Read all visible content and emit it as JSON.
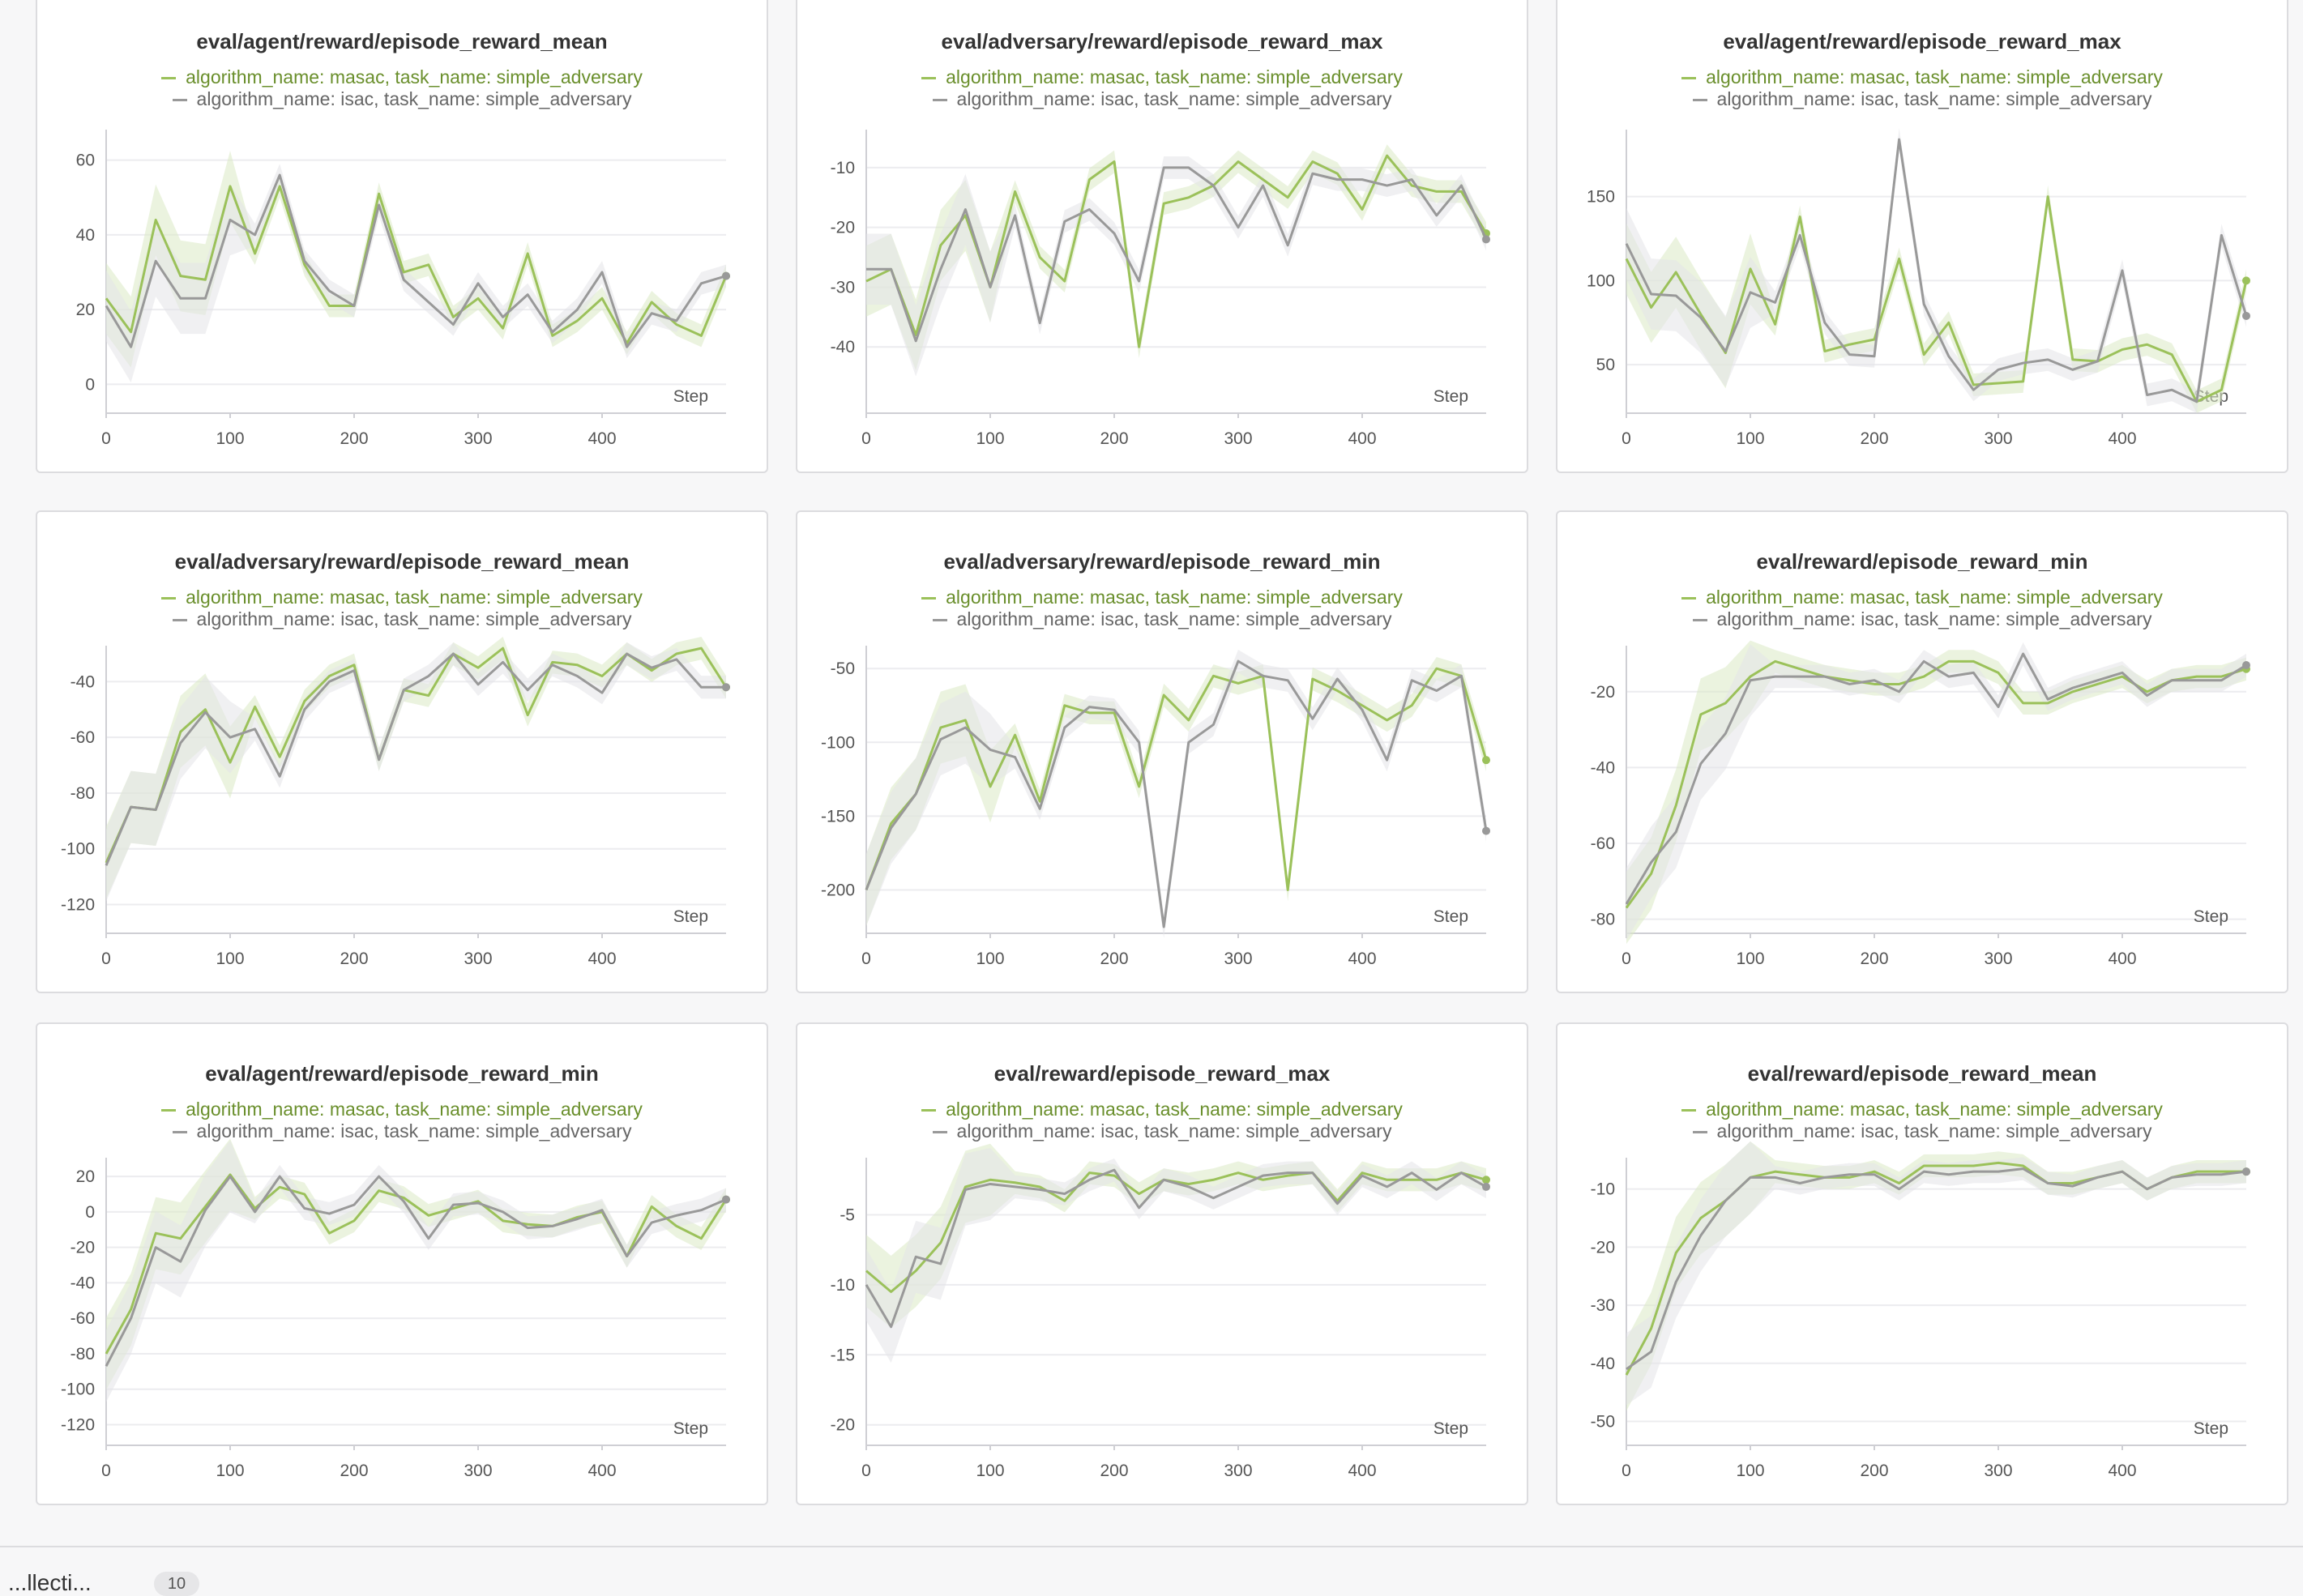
{
  "colors": {
    "masac": "#9bc15a",
    "isac": "#999999",
    "masac_band": "#dbe9c4",
    "isac_band": "#e4e4e7"
  },
  "legend": {
    "masac": "algorithm_name: masac, task_name: simple_adversary",
    "isac": "algorithm_name: isac, task_name: simple_adversary"
  },
  "x_axis_label": "Step",
  "footer": {
    "label": "...llecti...",
    "badge": "10"
  },
  "chart_data": [
    {
      "type": "line",
      "title": "eval/agent/reward/episode_reward_mean",
      "xlabel": "Step",
      "xlim": [
        0,
        500
      ],
      "ylim": [
        -6,
        66
      ],
      "xticks": [
        0,
        100,
        200,
        300,
        400
      ],
      "yticks": [
        0,
        20,
        40,
        60
      ],
      "x": [
        0,
        20,
        40,
        60,
        80,
        100,
        120,
        140,
        160,
        180,
        200,
        220,
        240,
        260,
        280,
        300,
        320,
        340,
        360,
        380,
        400,
        420,
        440,
        460,
        480,
        500
      ],
      "series": [
        {
          "name": "algorithm_name: masac, task_name: simple_adversary",
          "values": [
            23,
            14,
            44,
            29,
            28,
            53,
            35,
            53,
            32,
            21,
            21,
            51,
            30,
            32,
            18,
            23,
            15,
            35,
            13,
            17,
            23,
            11,
            22,
            16,
            13,
            29
          ]
        },
        {
          "name": "algorithm_name: isac, task_name: simple_adversary",
          "values": [
            21,
            10,
            33,
            23,
            23,
            44,
            40,
            56,
            33,
            25,
            21,
            48,
            28,
            22,
            16,
            27,
            18,
            24,
            14,
            20,
            30,
            10,
            19,
            17,
            27,
            29
          ]
        }
      ]
    },
    {
      "type": "line",
      "title": "eval/adversary/reward/episode_reward_max",
      "xlabel": "Step",
      "xlim": [
        0,
        500
      ],
      "ylim": [
        -50,
        -5
      ],
      "xticks": [
        0,
        100,
        200,
        300,
        400
      ],
      "yticks": [
        -10,
        -20,
        -30,
        -40
      ],
      "x": [
        0,
        20,
        40,
        60,
        80,
        100,
        120,
        140,
        160,
        180,
        200,
        220,
        240,
        260,
        280,
        300,
        320,
        340,
        360,
        380,
        400,
        420,
        440,
        460,
        480,
        500
      ],
      "series": [
        {
          "name": "algorithm_name: masac, task_name: simple_adversary",
          "values": [
            -29,
            -27,
            -38,
            -23,
            -18,
            -30,
            -14,
            -25,
            -29,
            -12,
            -9,
            -40,
            -16,
            -15,
            -13,
            -9,
            -12,
            -15,
            -9,
            -11,
            -17,
            -8,
            -13,
            -14,
            -14,
            -21
          ]
        },
        {
          "name": "algorithm_name: isac, task_name: simple_adversary",
          "values": [
            -27,
            -27,
            -39,
            -27,
            -17,
            -30,
            -18,
            -36,
            -19,
            -17,
            -21,
            -29,
            -10,
            -10,
            -13,
            -20,
            -13,
            -23,
            -11,
            -12,
            -12,
            -13,
            -12,
            -18,
            -13,
            -22
          ]
        }
      ]
    },
    {
      "type": "line",
      "title": "eval/agent/reward/episode_reward_max",
      "xlabel": "Step",
      "xlim": [
        0,
        500
      ],
      "ylim": [
        25,
        185
      ],
      "xticks": [
        0,
        100,
        200,
        300,
        400
      ],
      "yticks": [
        50,
        100,
        150
      ],
      "x": [
        0,
        20,
        40,
        60,
        80,
        100,
        120,
        140,
        160,
        180,
        200,
        220,
        240,
        260,
        280,
        300,
        320,
        340,
        360,
        380,
        400,
        420,
        440,
        460,
        480,
        500
      ],
      "series": [
        {
          "name": "algorithm_name: masac, task_name: simple_adversary",
          "values": [
            113,
            84,
            105,
            80,
            57,
            107,
            74,
            138,
            58,
            62,
            65,
            113,
            56,
            75,
            38,
            39,
            40,
            150,
            53,
            52,
            59,
            62,
            56,
            28,
            35,
            100
          ]
        },
        {
          "name": "algorithm_name: isac, task_name: simple_adversary",
          "values": [
            122,
            92,
            91,
            78,
            58,
            93,
            87,
            127,
            75,
            56,
            55,
            184,
            86,
            55,
            35,
            47,
            51,
            53,
            47,
            52,
            106,
            32,
            35,
            28,
            127,
            79
          ]
        }
      ]
    },
    {
      "type": "line",
      "title": "eval/adversary/reward/episode_reward_mean",
      "xlabel": "Step",
      "xlim": [
        0,
        500
      ],
      "ylim": [
        -128,
        -30
      ],
      "xticks": [
        0,
        100,
        200,
        300,
        400
      ],
      "yticks": [
        -40,
        -60,
        -80,
        -100,
        -120
      ],
      "x": [
        0,
        20,
        40,
        60,
        80,
        100,
        120,
        140,
        160,
        180,
        200,
        220,
        240,
        260,
        280,
        300,
        320,
        340,
        360,
        380,
        400,
        420,
        440,
        460,
        480,
        500
      ],
      "series": [
        {
          "name": "algorithm_name: masac, task_name: simple_adversary",
          "values": [
            -105,
            -85,
            -86,
            -58,
            -50,
            -69,
            -49,
            -67,
            -47,
            -38,
            -34,
            -68,
            -43,
            -45,
            -30,
            -35,
            -28,
            -52,
            -33,
            -34,
            -38,
            -30,
            -36,
            -30,
            -28,
            -42
          ]
        },
        {
          "name": "algorithm_name: isac, task_name: simple_adversary",
          "values": [
            -106,
            -85,
            -86,
            -62,
            -51,
            -60,
            -57,
            -74,
            -50,
            -40,
            -36,
            -68,
            -43,
            -38,
            -30,
            -41,
            -33,
            -43,
            -34,
            -38,
            -44,
            -30,
            -35,
            -32,
            -42,
            -42
          ]
        }
      ]
    },
    {
      "type": "line",
      "title": "eval/adversary/reward/episode_reward_min",
      "xlabel": "Step",
      "xlim": [
        0,
        500
      ],
      "ylim": [
        -225,
        -40
      ],
      "xticks": [
        0,
        100,
        200,
        300,
        400
      ],
      "yticks": [
        -50,
        -100,
        -150,
        -200
      ],
      "x": [
        0,
        20,
        40,
        60,
        80,
        100,
        120,
        140,
        160,
        180,
        200,
        220,
        240,
        260,
        280,
        300,
        320,
        340,
        360,
        380,
        400,
        420,
        440,
        460,
        480,
        500
      ],
      "series": [
        {
          "name": "algorithm_name: masac, task_name: simple_adversary",
          "values": [
            -200,
            -155,
            -135,
            -90,
            -85,
            -130,
            -95,
            -140,
            -75,
            -80,
            -80,
            -130,
            -68,
            -85,
            -55,
            -60,
            -55,
            -200,
            -57,
            -65,
            -75,
            -85,
            -75,
            -50,
            -55,
            -112
          ]
        },
        {
          "name": "algorithm_name: isac, task_name: simple_adversary",
          "values": [
            -200,
            -158,
            -135,
            -98,
            -90,
            -105,
            -110,
            -145,
            -90,
            -76,
            -78,
            -100,
            -225,
            -100,
            -88,
            -45,
            -55,
            -58,
            -84,
            -57,
            -78,
            -112,
            -58,
            -65,
            -55,
            -160
          ]
        }
      ]
    },
    {
      "type": "line",
      "title": "eval/reward/episode_reward_min",
      "xlabel": "Step",
      "xlim": [
        0,
        500
      ],
      "ylim": [
        -82,
        -10
      ],
      "xticks": [
        0,
        100,
        200,
        300,
        400
      ],
      "yticks": [
        -20,
        -40,
        -60,
        -80
      ],
      "x": [
        0,
        20,
        40,
        60,
        80,
        100,
        120,
        140,
        160,
        180,
        200,
        220,
        240,
        260,
        280,
        300,
        320,
        340,
        360,
        380,
        400,
        420,
        440,
        460,
        480,
        500
      ],
      "series": [
        {
          "name": "algorithm_name: masac, task_name: simple_adversary",
          "values": [
            -77,
            -68,
            -50,
            -26,
            -23,
            -16,
            -12,
            -14,
            -16,
            -17,
            -18,
            -18,
            -16,
            -12,
            -12,
            -15,
            -23,
            -23,
            -20,
            -18,
            -16,
            -20,
            -17,
            -16,
            -16,
            -14
          ]
        },
        {
          "name": "algorithm_name: isac, task_name: simple_adversary",
          "values": [
            -76,
            -65,
            -57,
            -39,
            -31,
            -17,
            -16,
            -16,
            -16,
            -18,
            -17,
            -20,
            -12,
            -16,
            -15,
            -24,
            -10,
            -22,
            -19,
            -17,
            -15,
            -21,
            -17,
            -17,
            -17,
            -13
          ]
        }
      ]
    },
    {
      "type": "line",
      "title": "eval/agent/reward/episode_reward_min",
      "xlabel": "Step",
      "xlim": [
        0,
        500
      ],
      "ylim": [
        -128,
        26
      ],
      "xticks": [
        0,
        100,
        200,
        300,
        400
      ],
      "yticks": [
        20,
        0,
        -20,
        -40,
        -60,
        -80,
        -100,
        -120
      ],
      "x": [
        0,
        20,
        40,
        60,
        80,
        100,
        120,
        140,
        160,
        180,
        200,
        220,
        240,
        260,
        280,
        300,
        320,
        340,
        360,
        380,
        400,
        420,
        440,
        460,
        480,
        500
      ],
      "series": [
        {
          "name": "algorithm_name: masac, task_name: simple_adversary",
          "values": [
            -80,
            -55,
            -12,
            -15,
            3,
            21,
            2,
            14,
            10,
            -12,
            -5,
            12,
            8,
            -2,
            2,
            6,
            -5,
            -7,
            -8,
            -3,
            0,
            -25,
            3,
            -8,
            -15,
            7
          ]
        },
        {
          "name": "algorithm_name: isac, task_name: simple_adversary",
          "values": [
            -87,
            -60,
            -20,
            -28,
            1,
            20,
            0,
            20,
            2,
            -1,
            4,
            20,
            6,
            -15,
            4,
            5,
            0,
            -9,
            -8,
            -4,
            1,
            -25,
            -6,
            -2,
            1,
            7
          ]
        }
      ]
    },
    {
      "type": "line",
      "title": "eval/reward/episode_reward_max",
      "xlabel": "Step",
      "xlim": [
        0,
        500
      ],
      "ylim": [
        -21,
        -1.5
      ],
      "xticks": [
        0,
        100,
        200,
        300,
        400
      ],
      "yticks": [
        -5,
        -10,
        -15,
        -20
      ],
      "x": [
        0,
        20,
        40,
        60,
        80,
        100,
        120,
        140,
        160,
        180,
        200,
        220,
        240,
        260,
        280,
        300,
        320,
        340,
        360,
        380,
        400,
        420,
        440,
        460,
        480,
        500
      ],
      "series": [
        {
          "name": "algorithm_name: masac, task_name: simple_adversary",
          "values": [
            -9,
            -10.5,
            -9,
            -7,
            -3,
            -2.5,
            -2.7,
            -3,
            -4,
            -2,
            -2.2,
            -3.5,
            -2.5,
            -2.8,
            -2.5,
            -2,
            -2.5,
            -2.2,
            -2,
            -4,
            -2,
            -2.5,
            -2.5,
            -2.5,
            -2,
            -2.5
          ]
        },
        {
          "name": "algorithm_name: isac, task_name: simple_adversary",
          "values": [
            -10,
            -13,
            -8,
            -8.5,
            -3.2,
            -2.8,
            -3,
            -3.2,
            -3.5,
            -2.5,
            -1.8,
            -4.5,
            -2.5,
            -3,
            -3.8,
            -3,
            -2.2,
            -2,
            -2,
            -4.2,
            -2.2,
            -3,
            -2,
            -3.2,
            -2,
            -3
          ]
        }
      ]
    },
    {
      "type": "line",
      "title": "eval/reward/episode_reward_mean",
      "xlabel": "Step",
      "xlim": [
        0,
        500
      ],
      "ylim": [
        -53,
        -6
      ],
      "xticks": [
        0,
        100,
        200,
        300,
        400
      ],
      "yticks": [
        -10,
        -20,
        -30,
        -40,
        -50
      ],
      "x": [
        0,
        20,
        40,
        60,
        80,
        100,
        120,
        140,
        160,
        180,
        200,
        220,
        240,
        260,
        280,
        300,
        320,
        340,
        360,
        380,
        400,
        420,
        440,
        460,
        480,
        500
      ],
      "series": [
        {
          "name": "algorithm_name: masac, task_name: simple_adversary",
          "values": [
            -42,
            -34,
            -21,
            -15,
            -12,
            -8,
            -7,
            -7.5,
            -8,
            -8,
            -7,
            -9,
            -6,
            -6,
            -6,
            -5.5,
            -6,
            -9,
            -9,
            -8,
            -7,
            -10,
            -8,
            -7,
            -7,
            -7
          ]
        },
        {
          "name": "algorithm_name: isac, task_name: simple_adversary",
          "values": [
            -41,
            -38,
            -26,
            -18,
            -12,
            -8,
            -8,
            -9,
            -8,
            -7.5,
            -7.5,
            -10,
            -7,
            -7.5,
            -7,
            -7,
            -6.5,
            -9,
            -9.5,
            -8,
            -7,
            -10,
            -8,
            -7.5,
            -7.5,
            -7
          ]
        }
      ]
    }
  ]
}
